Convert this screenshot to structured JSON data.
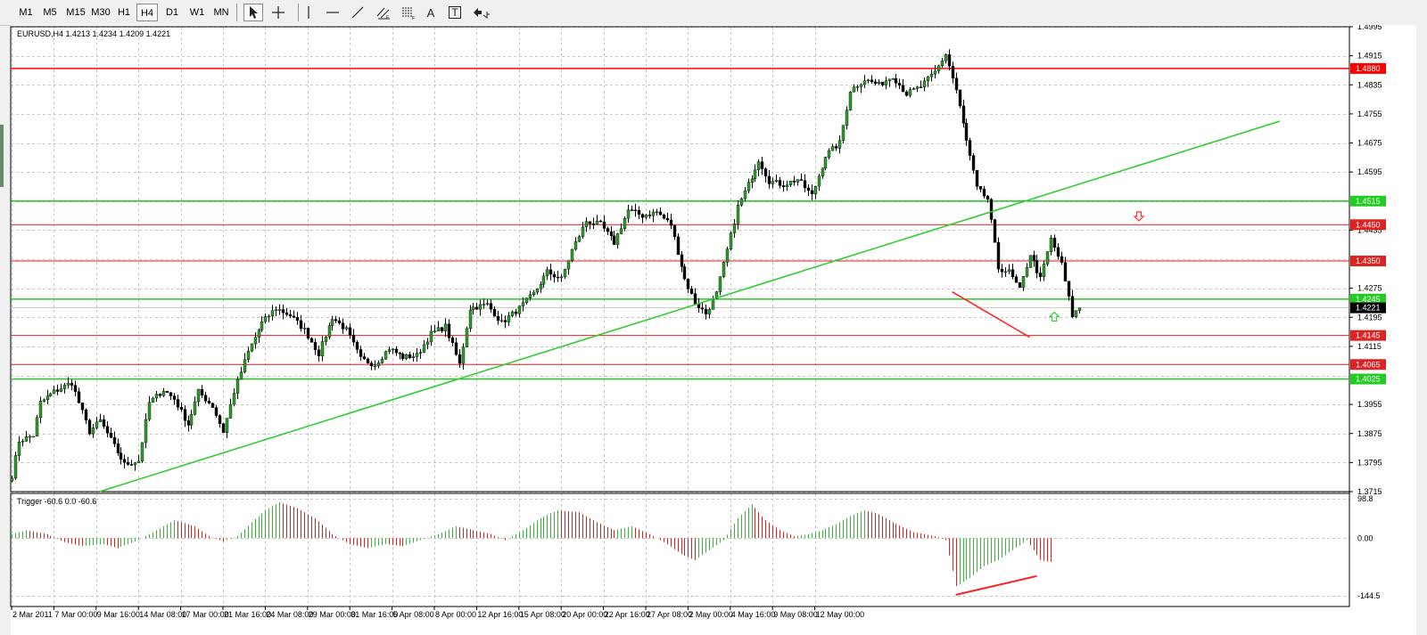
{
  "toolbar": {
    "timeframes": [
      {
        "label": "M1",
        "active": false
      },
      {
        "label": "M5",
        "active": false
      },
      {
        "label": "M15",
        "active": false
      },
      {
        "label": "M30",
        "active": false
      },
      {
        "label": "H1",
        "active": false
      },
      {
        "label": "H4",
        "active": true
      },
      {
        "label": "D1",
        "active": false
      },
      {
        "label": "W1",
        "active": false
      },
      {
        "label": "MN",
        "active": false
      }
    ],
    "tools": [
      {
        "name": "cursor-tool-icon",
        "active": true
      },
      {
        "name": "crosshair-tool-icon",
        "active": false
      },
      {
        "name": "vertical-line-tool-icon",
        "active": false
      },
      {
        "name": "horizontal-line-tool-icon",
        "active": false
      },
      {
        "name": "trendline-tool-icon",
        "active": false
      },
      {
        "name": "equidistant-channel-tool-icon",
        "active": false
      },
      {
        "name": "fibonacci-tool-icon",
        "active": false
      },
      {
        "name": "text-tool-icon",
        "active": false
      },
      {
        "name": "text-label-tool-icon",
        "active": false
      },
      {
        "name": "arrows-tool-icon",
        "active": false
      }
    ],
    "text_tool_glyph": "A",
    "text_label_tool_glyph": "T"
  },
  "chart": {
    "header": "EURUSD,H4  1.4213 1.4234 1.4209 1.4221",
    "price_axis_ticks": [
      "1.4995",
      "1.4915",
      "1.4835",
      "1.4755",
      "1.4675",
      "1.4595",
      "1.4435",
      "1.4275",
      "1.4195",
      "1.4115",
      "1.3955",
      "1.3875",
      "1.3795",
      "1.3715"
    ],
    "horizontal_lines": [
      {
        "price": 1.488,
        "label": "1.4880",
        "color": "#ff0000",
        "width": 1.5
      },
      {
        "price": 1.4515,
        "label": "1.4515",
        "color": "#22cc22",
        "width": 1.5
      },
      {
        "price": 1.445,
        "label": "1.4450",
        "color": "#dd2222",
        "width": 1
      },
      {
        "price": 1.435,
        "label": "1.4350",
        "color": "#dd2222",
        "width": 1
      },
      {
        "price": 1.4245,
        "label": "1.4245",
        "color": "#22cc22",
        "width": 1.5
      },
      {
        "price": 1.4145,
        "label": "1.4145",
        "color": "#dd2222",
        "width": 1
      },
      {
        "price": 1.4065,
        "label": "1.4065",
        "color": "#dd2222",
        "width": 1
      },
      {
        "price": 1.4025,
        "label": "1.4025",
        "color": "#22cc22",
        "width": 1.5
      }
    ],
    "current_price": {
      "price": 1.4221,
      "label": "1.4221"
    },
    "trend_lines": [
      {
        "name": "uptrend-line",
        "color": "#33cc33",
        "from": {
          "bar": 25,
          "price": 1.3715
        },
        "to": {
          "bar": 360,
          "price": 1.4735
        }
      },
      {
        "name": "price-divergence-line",
        "color": "#ff2222",
        "from": {
          "bar": 267,
          "price": 1.4265
        },
        "to": {
          "bar": 289,
          "price": 1.414
        }
      }
    ],
    "arrows": [
      {
        "name": "sell-arrow-icon",
        "direction": "down",
        "color": "#ff3333",
        "bar": 320,
        "price": 1.4473
      },
      {
        "name": "buy-arrow-icon",
        "direction": "up",
        "color": "#33cc33",
        "bar": 296,
        "price": 1.4197
      }
    ],
    "time_axis_labels": [
      "2 Mar 2011",
      "7 Mar 00:00",
      "9 Mar 16:00",
      "14 Mar 08:00",
      "17 Mar 00:00",
      "21 Mar 16:00",
      "24 Mar 08:00",
      "29 Mar 00:00",
      "31 Mar 16:00",
      "5 Apr 08:00",
      "8 Apr 00:00",
      "12 Apr 16:00",
      "15 Apr 08:00",
      "20 Apr 00:00",
      "22 Apr 16:00",
      "27 Apr 08:00",
      "2 May 00:00",
      "4 May 16:00",
      "9 May 08:00",
      "12 May 00:00"
    ]
  },
  "indicator": {
    "header": "Trigger -60.6 0.0 -60.6",
    "axis_labels": [
      "98.8",
      "0.00",
      "-144.5"
    ],
    "divergence_line": {
      "color": "#ff2222",
      "from": {
        "bar": 268,
        "value": -142
      },
      "to": {
        "bar": 291,
        "value": -95
      }
    }
  },
  "chart_data": {
    "type": "candlestick",
    "symbol": "EURUSD",
    "timeframe": "H4",
    "ylim": [
      1.3715,
      1.4995
    ],
    "bars_per_label": 12,
    "waypoints": [
      [
        0,
        1.376
      ],
      [
        2,
        1.3855
      ],
      [
        6,
        1.387
      ],
      [
        8,
        1.396
      ],
      [
        12,
        1.399
      ],
      [
        17,
        1.4015
      ],
      [
        19,
        1.396
      ],
      [
        22,
        1.388
      ],
      [
        25,
        1.391
      ],
      [
        29,
        1.384
      ],
      [
        32,
        1.379
      ],
      [
        36,
        1.38
      ],
      [
        39,
        1.396
      ],
      [
        43,
        1.3995
      ],
      [
        46,
        1.397
      ],
      [
        50,
        1.39
      ],
      [
        53,
        1.399
      ],
      [
        57,
        1.395
      ],
      [
        60,
        1.388
      ],
      [
        63,
        1.399
      ],
      [
        67,
        1.41
      ],
      [
        71,
        1.418
      ],
      [
        75,
        1.422
      ],
      [
        79,
        1.42
      ],
      [
        83,
        1.416
      ],
      [
        87,
        1.4095
      ],
      [
        91,
        1.4195
      ],
      [
        95,
        1.416
      ],
      [
        99,
        1.408
      ],
      [
        103,
        1.4065
      ],
      [
        107,
        1.411
      ],
      [
        111,
        1.4085
      ],
      [
        115,
        1.409
      ],
      [
        119,
        1.415
      ],
      [
        123,
        1.417
      ],
      [
        127,
        1.4065
      ],
      [
        130,
        1.422
      ],
      [
        135,
        1.423
      ],
      [
        139,
        1.418
      ],
      [
        144,
        1.422
      ],
      [
        148,
        1.426
      ],
      [
        152,
        1.432
      ],
      [
        156,
        1.43
      ],
      [
        159,
        1.438
      ],
      [
        163,
        1.446
      ],
      [
        167,
        1.445
      ],
      [
        171,
        1.44
      ],
      [
        175,
        1.449
      ],
      [
        179,
        1.4475
      ],
      [
        183,
        1.4485
      ],
      [
        187,
        1.445
      ],
      [
        191,
        1.43
      ],
      [
        194,
        1.4235
      ],
      [
        197,
        1.4205
      ],
      [
        200,
        1.426
      ],
      [
        203,
        1.438
      ],
      [
        206,
        1.45
      ],
      [
        209,
        1.456
      ],
      [
        212,
        1.463
      ],
      [
        215,
        1.457
      ],
      [
        219,
        1.456
      ],
      [
        223,
        1.4575
      ],
      [
        227,
        1.453
      ],
      [
        231,
        1.464
      ],
      [
        235,
        1.4675
      ],
      [
        238,
        1.482
      ],
      [
        242,
        1.485
      ],
      [
        246,
        1.4835
      ],
      [
        250,
        1.486
      ],
      [
        254,
        1.481
      ],
      [
        258,
        1.483
      ],
      [
        262,
        1.487
      ],
      [
        265,
        1.492
      ],
      [
        268,
        1.482
      ],
      [
        271,
        1.468
      ],
      [
        274,
        1.455
      ],
      [
        277,
        1.452
      ],
      [
        280,
        1.433
      ],
      [
        283,
        1.432
      ],
      [
        286,
        1.427
      ],
      [
        289,
        1.437
      ],
      [
        292,
        1.43
      ],
      [
        295,
        1.441
      ],
      [
        298,
        1.434
      ],
      [
        301,
        1.42
      ],
      [
        303,
        1.4221
      ]
    ],
    "trigger_waypoints": [
      [
        0,
        10
      ],
      [
        4,
        20
      ],
      [
        10,
        10
      ],
      [
        15,
        -10
      ],
      [
        20,
        -20
      ],
      [
        26,
        -15
      ],
      [
        30,
        -25
      ],
      [
        33,
        -15
      ],
      [
        36,
        -5
      ],
      [
        40,
        15
      ],
      [
        46,
        45
      ],
      [
        52,
        30
      ],
      [
        56,
        5
      ],
      [
        60,
        -8
      ],
      [
        64,
        5
      ],
      [
        68,
        40
      ],
      [
        72,
        70
      ],
      [
        76,
        90
      ],
      [
        81,
        75
      ],
      [
        86,
        50
      ],
      [
        91,
        10
      ],
      [
        96,
        -15
      ],
      [
        101,
        -25
      ],
      [
        106,
        -15
      ],
      [
        111,
        -20
      ],
      [
        116,
        -5
      ],
      [
        121,
        10
      ],
      [
        126,
        30
      ],
      [
        131,
        20
      ],
      [
        136,
        10
      ],
      [
        140,
        -5
      ],
      [
        145,
        20
      ],
      [
        150,
        50
      ],
      [
        155,
        70
      ],
      [
        161,
        65
      ],
      [
        166,
        40
      ],
      [
        171,
        20
      ],
      [
        176,
        30
      ],
      [
        181,
        10
      ],
      [
        186,
        -15
      ],
      [
        190,
        -40
      ],
      [
        194,
        -55
      ],
      [
        198,
        -30
      ],
      [
        202,
        -5
      ],
      [
        206,
        50
      ],
      [
        210,
        85
      ],
      [
        214,
        45
      ],
      [
        218,
        20
      ],
      [
        222,
        5
      ],
      [
        226,
        10
      ],
      [
        230,
        20
      ],
      [
        234,
        35
      ],
      [
        238,
        55
      ],
      [
        242,
        70
      ],
      [
        246,
        60
      ],
      [
        250,
        40
      ],
      [
        256,
        15
      ],
      [
        262,
        5
      ],
      [
        265,
        -5
      ],
      [
        268,
        -120
      ],
      [
        272,
        -100
      ],
      [
        276,
        -70
      ],
      [
        280,
        -55
      ],
      [
        284,
        -30
      ],
      [
        288,
        -5
      ],
      [
        292,
        -55
      ],
      [
        295,
        -60
      ]
    ]
  }
}
